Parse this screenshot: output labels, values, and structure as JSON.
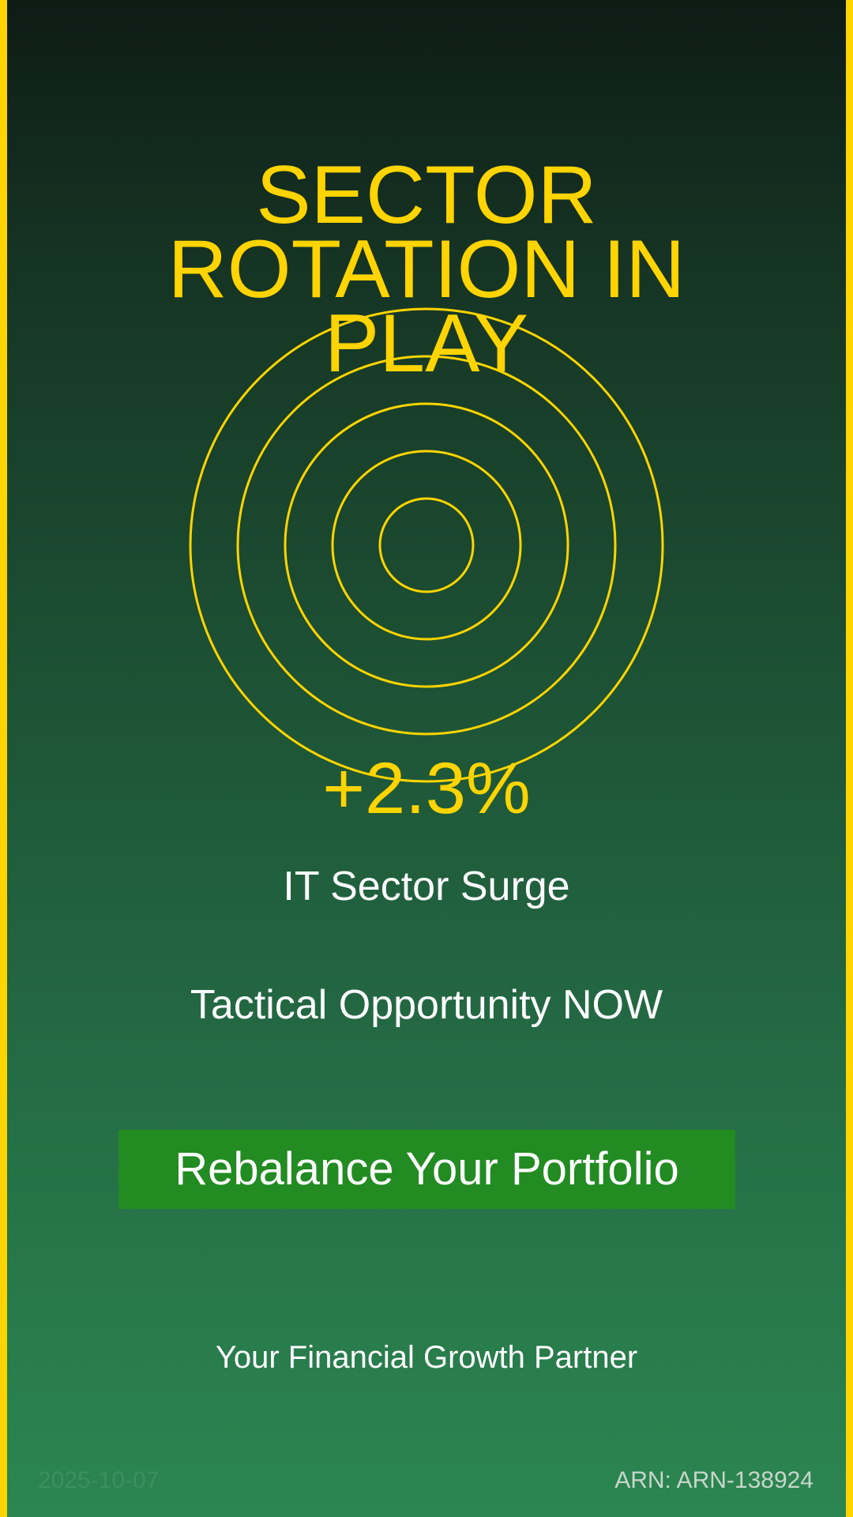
{
  "headline": "SECTOR ROTATION IN PLAY",
  "stat": "+2.3%",
  "sector_line": "IT Sector Surge",
  "tactical_line": "Tactical Opportunity NOW",
  "cta_label": "Rebalance Your Portfolio",
  "tagline": "Your Financial Growth Partner",
  "footer": {
    "date": "2025-10-07",
    "arn": "ARN: ARN-138924"
  },
  "colors": {
    "accent": "#ffd400",
    "cta": "#228b22",
    "background_top": "#0e1c16",
    "background_bottom": "#2c8651"
  },
  "icons": {
    "target": "concentric-rings-icon"
  }
}
